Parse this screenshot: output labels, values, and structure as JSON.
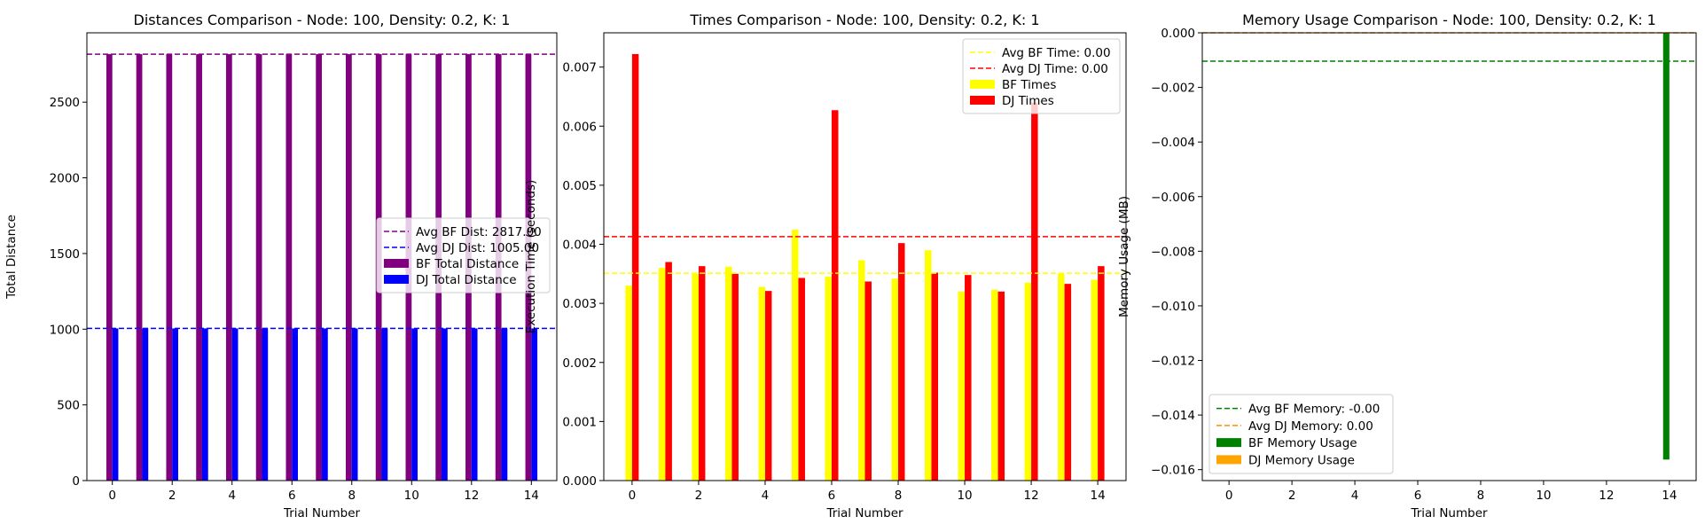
{
  "chart_data": [
    {
      "type": "bar",
      "title": "Distances Comparison - Node: 100, Density: 0.2, K: 1",
      "xlabel": "Trial Number",
      "ylabel": "Total Distance",
      "x": [
        0,
        1,
        2,
        3,
        4,
        5,
        6,
        7,
        8,
        9,
        10,
        11,
        12,
        13,
        14
      ],
      "xticks": [
        "0",
        "2",
        "4",
        "6",
        "8",
        "10",
        "12",
        "14"
      ],
      "yticks": [
        "0",
        "500",
        "1000",
        "1500",
        "2000",
        "2500"
      ],
      "ylim": [
        0,
        2958
      ],
      "xlim": [
        -0.85,
        14.85
      ],
      "series": [
        {
          "name": "BF Total Distance",
          "values": [
            2817,
            2817,
            2817,
            2817,
            2817,
            2817,
            2817,
            2817,
            2817,
            2817,
            2817,
            2817,
            2817,
            2817,
            2817
          ]
        },
        {
          "name": "DJ Total Distance",
          "values": [
            1005,
            1005,
            1005,
            1005,
            1005,
            1005,
            1005,
            1005,
            1005,
            1005,
            1005,
            1005,
            1005,
            1005,
            1005
          ]
        }
      ],
      "avg_lines": [
        {
          "name": "Avg BF Dist: 2817.00",
          "value": 2817
        },
        {
          "name": "Avg DJ Dist: 1005.00",
          "value": 1005
        }
      ],
      "colors": {
        "bf": "#800080",
        "dj": "#0000ff",
        "avg_bf": "#800080",
        "avg_dj": "#0000ff"
      },
      "legend": "center-right",
      "grid": false
    },
    {
      "type": "bar",
      "title": "Times Comparison - Node: 100, Density: 0.2, K: 1",
      "xlabel": "Trial Number",
      "ylabel": "Execution Time (seconds)",
      "x": [
        0,
        1,
        2,
        3,
        4,
        5,
        6,
        7,
        8,
        9,
        10,
        11,
        12,
        13,
        14
      ],
      "xticks": [
        "0",
        "2",
        "4",
        "6",
        "8",
        "10",
        "12",
        "14"
      ],
      "yticks": [
        "0.000",
        "0.001",
        "0.002",
        "0.003",
        "0.004",
        "0.005",
        "0.006",
        "0.007"
      ],
      "ylim": [
        0,
        0.00758
      ],
      "xlim": [
        -0.85,
        14.85
      ],
      "series": [
        {
          "name": "BF Times",
          "values": [
            0.0033,
            0.0036,
            0.0035,
            0.00362,
            0.00328,
            0.00425,
            0.00345,
            0.00373,
            0.00342,
            0.0039,
            0.0032,
            0.00323,
            0.00335,
            0.0035,
            0.0034
          ]
        },
        {
          "name": "DJ Times",
          "values": [
            0.00722,
            0.0037,
            0.00363,
            0.0035,
            0.00321,
            0.00343,
            0.00627,
            0.00337,
            0.00402,
            0.00352,
            0.00348,
            0.0032,
            0.0064,
            0.00333,
            0.00363
          ]
        }
      ],
      "avg_lines": [
        {
          "name": "Avg BF Time: 0.00",
          "value": 0.00351
        },
        {
          "name": "Avg DJ Time: 0.00",
          "value": 0.00413
        }
      ],
      "colors": {
        "bf": "#ffff00",
        "dj": "#ff0000",
        "avg_bf": "#ffff00",
        "avg_dj": "#ff0000"
      },
      "legend": "top-right",
      "grid": false
    },
    {
      "type": "bar",
      "title": "Memory Usage Comparison - Node: 100, Density: 0.2, K: 1",
      "xlabel": "Trial Number",
      "ylabel": "Memory Usage (MB)",
      "x": [
        0,
        1,
        2,
        3,
        4,
        5,
        6,
        7,
        8,
        9,
        10,
        11,
        12,
        13,
        14
      ],
      "xticks": [
        "0",
        "2",
        "4",
        "6",
        "8",
        "10",
        "12",
        "14"
      ],
      "yticks": [
        "0.000",
        "−0.002",
        "−0.004",
        "−0.006",
        "−0.008",
        "−0.010",
        "−0.012",
        "−0.014",
        "−0.016"
      ],
      "ylim": [
        -0.0164,
        0
      ],
      "xlim": [
        -0.85,
        14.85
      ],
      "series": [
        {
          "name": "BF Memory Usage",
          "values": [
            0,
            0,
            0,
            0,
            0,
            0,
            0,
            0,
            0,
            0,
            0,
            0,
            0,
            0,
            -0.01563
          ]
        },
        {
          "name": "DJ Memory Usage",
          "values": [
            0,
            0,
            0,
            0,
            0,
            0,
            0,
            0,
            0,
            0,
            0,
            0,
            0,
            0,
            0
          ]
        }
      ],
      "avg_lines": [
        {
          "name": "Avg BF Memory: -0.00",
          "value": -0.00104
        },
        {
          "name": "Avg DJ Memory: 0.00",
          "value": 0
        }
      ],
      "colors": {
        "bf": "#008000",
        "dj": "#ffa500",
        "avg_bf": "#008000",
        "avg_dj": "#ff8c00"
      },
      "legend": "bottom-left",
      "grid": false
    }
  ]
}
